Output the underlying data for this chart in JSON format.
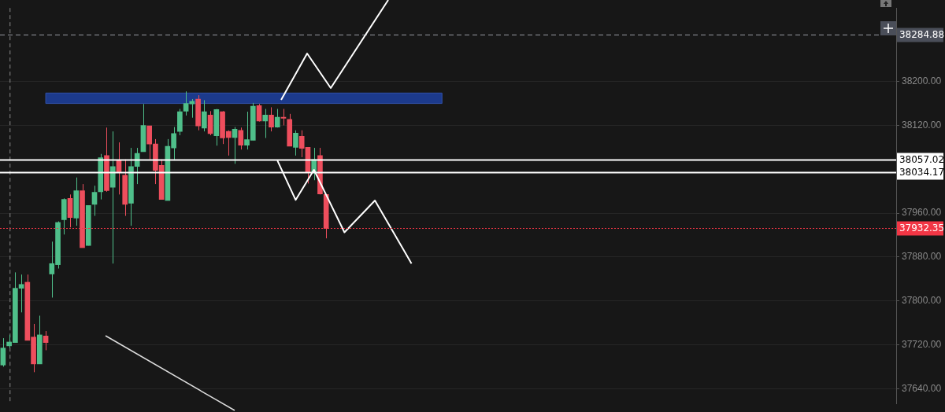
{
  "chart_data": {
    "type": "candlestick",
    "categories": [
      null,
      null,
      null,
      null,
      null,
      null,
      null,
      null,
      null,
      null,
      null,
      null,
      null,
      null,
      null,
      null,
      null,
      null,
      null,
      null,
      null,
      null,
      null,
      null,
      null,
      null,
      null,
      null,
      null,
      null,
      null,
      null,
      null,
      null,
      null,
      null,
      null,
      null,
      null,
      null,
      null,
      null,
      null,
      null,
      null,
      null,
      null,
      null,
      null,
      null,
      null,
      null,
      null,
      null,
      null,
      null,
      null,
      null,
      null,
      null,
      null,
      null,
      null,
      null,
      null,
      null,
      null,
      null,
      null,
      null,
      null,
      null,
      null,
      null,
      null,
      null,
      null,
      null,
      null,
      null,
      null,
      null,
      null,
      null,
      null,
      null,
      null,
      null,
      null,
      null,
      null,
      null,
      null,
      null,
      null,
      null,
      null,
      null,
      null,
      null,
      null,
      null,
      null,
      null,
      null,
      null,
      null,
      null,
      null,
      null,
      null,
      null,
      null,
      null,
      null,
      null,
      null,
      null,
      null,
      null,
      null,
      null,
      null,
      null,
      null,
      null,
      null,
      null,
      null,
      null,
      null,
      null,
      null,
      null,
      null,
      null,
      null,
      null,
      null,
      null,
      null,
      null,
      null,
      null,
      null,
      null,
      null
    ],
    "ohlc": [
      [
        37683,
        37732,
        37680,
        37714
      ],
      [
        37718,
        37738,
        37714,
        37725
      ],
      [
        37724,
        37852,
        37724,
        37823
      ],
      [
        37823,
        37848,
        37779,
        37830
      ],
      [
        37834,
        37848,
        37728,
        37728
      ],
      [
        37734,
        37758,
        37670,
        37685
      ],
      [
        37685,
        37773,
        37685,
        37738
      ],
      [
        37736,
        37745,
        37710,
        37724
      ],
      [
        37849,
        37908,
        37806,
        37868
      ],
      [
        37866,
        37945,
        37859,
        37943
      ],
      [
        37948,
        37987,
        37921,
        37985
      ],
      [
        37987,
        37994,
        37934,
        37952
      ],
      [
        37951,
        38025,
        37937,
        38001
      ],
      [
        38001,
        38013,
        37897,
        37897
      ],
      [
        37901,
        37974,
        37901,
        37974
      ],
      [
        37976,
        38010,
        37955,
        37998
      ],
      [
        37999,
        38068,
        37985,
        38061
      ],
      [
        38065,
        38116,
        37999,
        38001
      ],
      [
        38007,
        38109,
        37868,
        38045
      ],
      [
        38056,
        38089,
        37994,
        38034
      ],
      [
        38029,
        38058,
        37955,
        37976
      ],
      [
        37978,
        38079,
        37937,
        38045
      ],
      [
        38045,
        38079,
        38013,
        38069
      ],
      [
        38072,
        38159,
        38072,
        38120
      ],
      [
        38119,
        38119,
        38058,
        38086
      ],
      [
        38086,
        38095,
        38013,
        38038
      ],
      [
        38047,
        38058,
        37985,
        37985
      ],
      [
        37983,
        38095,
        37983,
        38082
      ],
      [
        38079,
        38117,
        38056,
        38105
      ],
      [
        38109,
        38150,
        38102,
        38145
      ],
      [
        38146,
        38182,
        38138,
        38160
      ],
      [
        38159,
        38168,
        38134,
        38164
      ],
      [
        38168,
        38175,
        38111,
        38119
      ],
      [
        38115,
        38166,
        38109,
        38145
      ],
      [
        38139,
        38146,
        38102,
        38105
      ],
      [
        38101,
        38150,
        38083,
        38149
      ],
      [
        38145,
        38146,
        38086,
        38097
      ],
      [
        38109,
        38111,
        38065,
        38098
      ],
      [
        38098,
        38117,
        38050,
        38113
      ],
      [
        38111,
        38116,
        38076,
        38084
      ],
      [
        38084,
        38145,
        38076,
        38094
      ],
      [
        38093,
        38161,
        38093,
        38155
      ],
      [
        38156,
        38159,
        38127,
        38128
      ],
      [
        38128,
        38150,
        38097,
        38139
      ],
      [
        38139,
        38153,
        38109,
        38117
      ],
      [
        38117,
        38150,
        38116,
        38135
      ],
      [
        38135,
        38150,
        38120,
        38133
      ],
      [
        38131,
        38141,
        38082,
        38082
      ],
      [
        38080,
        38111,
        38065,
        38106
      ],
      [
        38100,
        38111,
        38062,
        38078
      ],
      [
        38080,
        38080,
        38014,
        38034
      ],
      [
        38035,
        38079,
        38020,
        38058
      ],
      [
        38065,
        38079,
        37994,
        37995
      ],
      [
        37994,
        37994,
        37914,
        37932
      ],
      null,
      null,
      null,
      null,
      null,
      null,
      null,
      null,
      null,
      null,
      null,
      null,
      null,
      null,
      null,
      null,
      null,
      null,
      null,
      null,
      null,
      null,
      null,
      null,
      null,
      null,
      null,
      null,
      null,
      null,
      null,
      null,
      null,
      null,
      null,
      null,
      null,
      null,
      null,
      null,
      null,
      null,
      null,
      null,
      null,
      null,
      null,
      null,
      null,
      null,
      null,
      null,
      null,
      null,
      null,
      null,
      null,
      null,
      null,
      null,
      null,
      null,
      null,
      null,
      null,
      null,
      null,
      null,
      null,
      null,
      null,
      null,
      null,
      null,
      null,
      null,
      null,
      null,
      null,
      null,
      null,
      null,
      null,
      null,
      null,
      null,
      null,
      null,
      null,
      null,
      null,
      null,
      null
    ],
    "series": [
      {
        "type": "line",
        "color": "#ffffff",
        "values": [
          null,
          null,
          null,
          null,
          null,
          null,
          null,
          null,
          null,
          null,
          null,
          null,
          null,
          null,
          null,
          null,
          null,
          null,
          null,
          null,
          null,
          null,
          null,
          null,
          null,
          null,
          null,
          null,
          null,
          null,
          null,
          null,
          null,
          null,
          null,
          null,
          null,
          null,
          null,
          null,
          null,
          null,
          null,
          null,
          null,
          38056,
          null,
          null,
          37984,
          null,
          null,
          38039,
          null,
          null,
          null,
          null,
          37925,
          null,
          null,
          null,
          null,
          37983,
          null,
          null,
          null,
          null,
          null,
          37868,
          null,
          null,
          null,
          null,
          null,
          null,
          null,
          null,
          null,
          null,
          null,
          null,
          null,
          null,
          null,
          null,
          null,
          null,
          null,
          null,
          null,
          null,
          null,
          null,
          null,
          null,
          null,
          null,
          null,
          null,
          null,
          null,
          null,
          null,
          null,
          null,
          null,
          null,
          null,
          null,
          null,
          null,
          null,
          null,
          null,
          null,
          null,
          null,
          null,
          null,
          null,
          null,
          null,
          null,
          null,
          null,
          null,
          null,
          null,
          null,
          null,
          null,
          null,
          null,
          null,
          null,
          null,
          null,
          null,
          null,
          null,
          null,
          null,
          null,
          null,
          null,
          null,
          null,
          null
        ]
      }
    ],
    "ylim": [
      37612,
      38334
    ],
    "yticks": [
      {
        "value": 37640,
        "label": "37640.00"
      },
      {
        "value": 37720,
        "label": "37720.00"
      },
      {
        "value": 37800,
        "label": "37800.00"
      },
      {
        "value": 37880,
        "label": "37880.00"
      },
      {
        "value": 37960,
        "label": "37960.00"
      },
      {
        "value": 38120,
        "label": "38120.00"
      },
      {
        "value": 38200,
        "label": "38200.00"
      }
    ],
    "grid": "y",
    "tick_labels": "y",
    "ref_lines": [
      {
        "axis": "y",
        "value": 38284.88,
        "label": "38284.88",
        "color": "#9598a1",
        "line_style": "dashed"
      },
      {
        "axis": "y",
        "value": 38057.02,
        "label": "38057.02",
        "color": "#ffffff",
        "line_style": "solid"
      },
      {
        "axis": "y",
        "value": 38034.17,
        "label": "38034.17",
        "color": "#ffffff",
        "line_style": "solid"
      },
      {
        "axis": "y",
        "value": 37932.35,
        "label": "37932.35",
        "color": "#f23645",
        "line_style": "dotted"
      }
    ],
    "bands": [
      {
        "axis": "y",
        "from": 38160,
        "to": 38179,
        "color": "#1c3a8c"
      }
    ]
  }
}
